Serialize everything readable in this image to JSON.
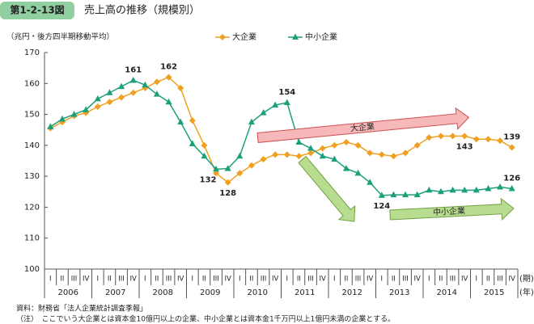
{
  "header": {
    "figure_label": "第1-2-13図",
    "title": "売上高の推移（規模別）"
  },
  "chart_data": {
    "type": "line",
    "y_label": "（兆円・後方四半期移動平均）",
    "categories": [
      "I",
      "II",
      "III",
      "IV",
      "I",
      "II",
      "III",
      "IV",
      "I",
      "II",
      "III",
      "IV",
      "I",
      "II",
      "III",
      "IV",
      "I",
      "II",
      "III",
      "IV",
      "I",
      "II",
      "III",
      "IV",
      "I",
      "II",
      "III",
      "IV",
      "I",
      "II",
      "III",
      "IV",
      "I",
      "II",
      "III",
      "IV",
      "I",
      "II",
      "III",
      "IV"
    ],
    "years": [
      "2006",
      "2007",
      "2008",
      "2009",
      "2010",
      "2011",
      "2012",
      "2013",
      "2014",
      "2015"
    ],
    "x_unit_quarter": "(期)",
    "x_unit_year": "(年)",
    "ylim": [
      100,
      170
    ],
    "yticks": [
      100,
      110,
      120,
      130,
      140,
      150,
      160,
      170
    ],
    "series": [
      {
        "name": "大企業",
        "color": "#f0a020",
        "marker": "diamond",
        "values": [
          145.5,
          147.5,
          149.5,
          150.5,
          152.5,
          154,
          155.5,
          157,
          158.5,
          160.5,
          162,
          158.5,
          148,
          140,
          131,
          128,
          131,
          133.5,
          135.5,
          137,
          137,
          136.5,
          137.5,
          139,
          140,
          141,
          140,
          137.5,
          137,
          136.5,
          137.5,
          140,
          142.5,
          143,
          143,
          143,
          142,
          142,
          141.5,
          139.3
        ],
        "value_labels": [
          null,
          null,
          null,
          null,
          null,
          null,
          null,
          null,
          null,
          null,
          "162",
          null,
          null,
          null,
          null,
          "128",
          null,
          null,
          null,
          null,
          null,
          null,
          null,
          null,
          null,
          null,
          null,
          null,
          null,
          null,
          null,
          null,
          null,
          null,
          null,
          "143",
          null,
          null,
          null,
          "139"
        ]
      },
      {
        "name": "中小企業",
        "color": "#1aa07a",
        "marker": "triangle",
        "values": [
          146,
          148.5,
          150,
          151.5,
          155,
          157,
          159,
          161,
          159.5,
          156.5,
          154,
          147.5,
          140.5,
          136.5,
          132.3,
          132.5,
          136.5,
          147.5,
          150.5,
          153,
          153.8,
          141,
          139,
          136.5,
          135.5,
          132.5,
          131,
          128,
          123.8,
          124,
          124,
          124,
          125.5,
          125,
          125.5,
          125.5,
          125.5,
          126,
          126.5,
          126
        ],
        "value_labels": [
          null,
          null,
          null,
          null,
          null,
          null,
          null,
          "161",
          null,
          null,
          null,
          null,
          null,
          null,
          "132",
          null,
          null,
          null,
          null,
          null,
          "154",
          null,
          null,
          null,
          null,
          null,
          null,
          null,
          "124",
          null,
          null,
          null,
          null,
          null,
          null,
          null,
          null,
          null,
          null,
          "126"
        ]
      }
    ],
    "arrow_labels": [
      "大企業",
      "中小企業"
    ]
  },
  "notes": [
    "資料：財務省「法人企業統計調査季報」",
    "（注）　ここでいう大企業とは資本金10億円以上の企業、中小企業とは資本金1千万円以上1億円未満の企業とする。"
  ]
}
